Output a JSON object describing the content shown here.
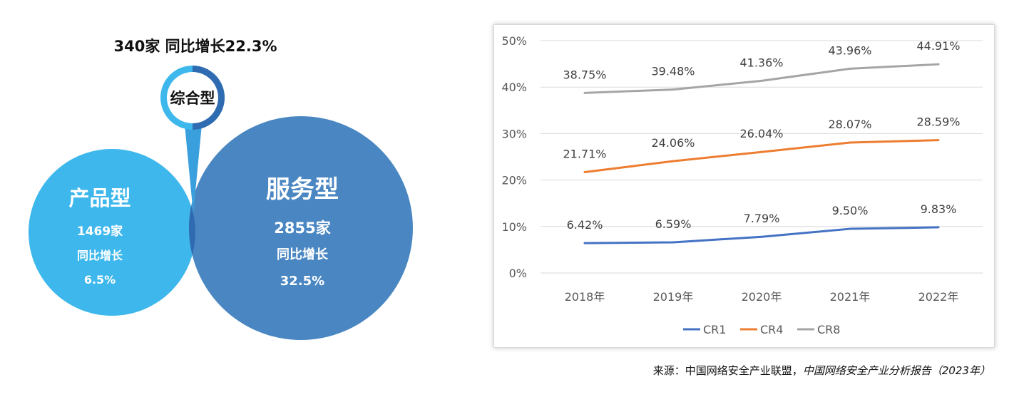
{
  "venn": {
    "header": "340家 同比增长22.3%",
    "comprehensive_label": "综合型",
    "product": {
      "title": "产品型",
      "count": "1469家",
      "growth_label": "同比增长",
      "growth_value": "6.5%"
    },
    "service": {
      "title": "服务型",
      "count": "2855家",
      "growth_label": "同比增长",
      "growth_value": "32.5%"
    },
    "colors": {
      "product": "#3db7ec",
      "service": "#4a87c2",
      "overlap": "#2f6bb0"
    }
  },
  "chart_data": {
    "type": "line",
    "categories": [
      "2018年",
      "2019年",
      "2020年",
      "2021年",
      "2022年"
    ],
    "series": [
      {
        "name": "CR1",
        "values": [
          6.42,
          6.59,
          7.79,
          9.5,
          9.83
        ],
        "labels": [
          "6.42%",
          "6.59%",
          "7.79%",
          "9.50%",
          "9.83%"
        ],
        "color": "#4472c4"
      },
      {
        "name": "CR4",
        "values": [
          21.71,
          24.06,
          26.04,
          28.07,
          28.59
        ],
        "labels": [
          "21.71%",
          "24.06%",
          "26.04%",
          "28.07%",
          "28.59%"
        ],
        "color": "#ed7d31"
      },
      {
        "name": "CR8",
        "values": [
          38.75,
          39.48,
          41.36,
          43.96,
          44.91
        ],
        "labels": [
          "38.75%",
          "39.48%",
          "41.36%",
          "43.96%",
          "44.91%"
        ],
        "color": "#a5a5a5"
      }
    ],
    "y_ticks": [
      "0%",
      "10%",
      "20%",
      "30%",
      "40%",
      "50%"
    ],
    "ylim": [
      0,
      50
    ],
    "grid": true,
    "legend": "bottom"
  },
  "source": {
    "prefix": "来源：中国网络安全产业联盟，",
    "title": "中国网络安全产业分析报告（2023年）"
  }
}
